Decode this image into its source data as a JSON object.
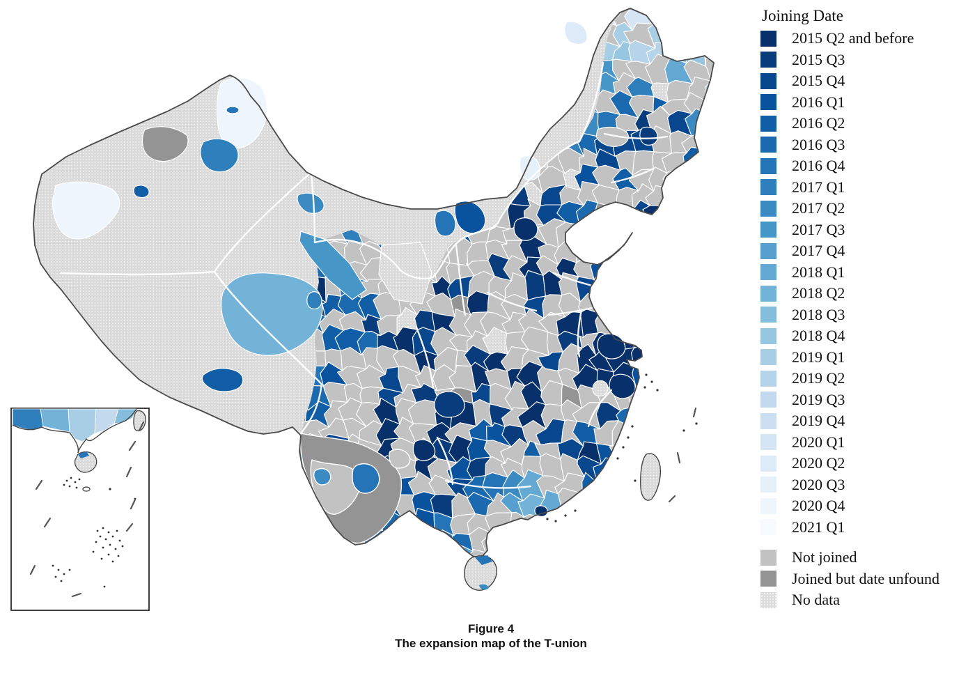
{
  "legend": {
    "title": "Joining Date",
    "quarters": [
      {
        "label": "2015 Q2 and before",
        "color": "#08306B"
      },
      {
        "label": "2015 Q3",
        "color": "#083C7C"
      },
      {
        "label": "2015 Q4",
        "color": "#08478D"
      },
      {
        "label": "2016 Q1",
        "color": "#09529D"
      },
      {
        "label": "2016 Q2",
        "color": "#125EA6"
      },
      {
        "label": "2016 Q3",
        "color": "#1B69AF"
      },
      {
        "label": "2016 Q4",
        "color": "#2474B7"
      },
      {
        "label": "2017 Q1",
        "color": "#2F7FBC"
      },
      {
        "label": "2017 Q2",
        "color": "#3B8BC2"
      },
      {
        "label": "2017 Q3",
        "color": "#4796C8"
      },
      {
        "label": "2017 Q4",
        "color": "#569FCE"
      },
      {
        "label": "2018 Q1",
        "color": "#64A9D3"
      },
      {
        "label": "2018 Q2",
        "color": "#74B3D8"
      },
      {
        "label": "2018 Q3",
        "color": "#86BDDC"
      },
      {
        "label": "2018 Q4",
        "color": "#97C6E0"
      },
      {
        "label": "2019 Q1",
        "color": "#A7CEE4"
      },
      {
        "label": "2019 Q2",
        "color": "#B5D4E9"
      },
      {
        "label": "2019 Q3",
        "color": "#C3DAEE"
      },
      {
        "label": "2019 Q4",
        "color": "#CCDFF1"
      },
      {
        "label": "2020 Q1",
        "color": "#D5E5F4"
      },
      {
        "label": "2020 Q2",
        "color": "#DDEAF7"
      },
      {
        "label": "2020 Q3",
        "color": "#E6F0F9"
      },
      {
        "label": "2020 Q4",
        "color": "#EEF5FC"
      },
      {
        "label": "2021 Q1",
        "color": "#F7FBFF"
      }
    ],
    "others": [
      {
        "label": "Not joined",
        "color": "#C2C2C2",
        "pattern": false
      },
      {
        "label": "Joined but date unfound",
        "color": "#949494",
        "pattern": false
      },
      {
        "label": "No data",
        "color": "#DCDCDC",
        "pattern": true
      }
    ]
  },
  "caption": {
    "line1": "Figure 4",
    "line2": "The expansion map of the T-union"
  },
  "map": {
    "colors": {
      "not_joined": "#C2C2C2",
      "joined_unfound": "#949494",
      "no_data": "#DADADA",
      "outline": "#4A4A4A",
      "province_border": "#FFFFFF",
      "sea": "#FFFFFF",
      "island_mark": "#333333"
    },
    "regions": {
      "ili": "q22",
      "altay": "q22",
      "altay_city": "q6",
      "karamay": "q4",
      "urumqi": "q7",
      "tacheng": "joined_unfound",
      "ejina": "q8",
      "hexi": "q9",
      "qinghai": "q12",
      "xining": "q7",
      "lhasa": "q4",
      "hohhot": "q3",
      "baotou": "q6",
      "xilingol": "q21",
      "im_arm_pale": "q20",
      "ordos": "no_data",
      "harbin_west_gray": "not_joined",
      "yunnan": "joined_unfound",
      "yunnan_light": "not_joined",
      "kunming": "q6",
      "dali": "q8",
      "guizhou_gray": "not_joined",
      "beijing": "q0",
      "harbin": "q1",
      "suzhou": "q0",
      "ningbo": "q0",
      "shanghai_patch": "no_data",
      "chongqing": "q1",
      "guiyang": "q0",
      "hongkong": "q0",
      "taiwan": "no_data",
      "hainan": "no_data",
      "haikou": "q6",
      "sanya": "q8",
      "inset_coast_1": "q7",
      "inset_coast_2": "q12",
      "inset_coast_3": "q15",
      "inset_coast_4": "q17",
      "inset_coast_5": "q13",
      "inset_taiwan": "no_data",
      "inset_hainan": "no_data",
      "inset_haikou": "q6"
    }
  }
}
